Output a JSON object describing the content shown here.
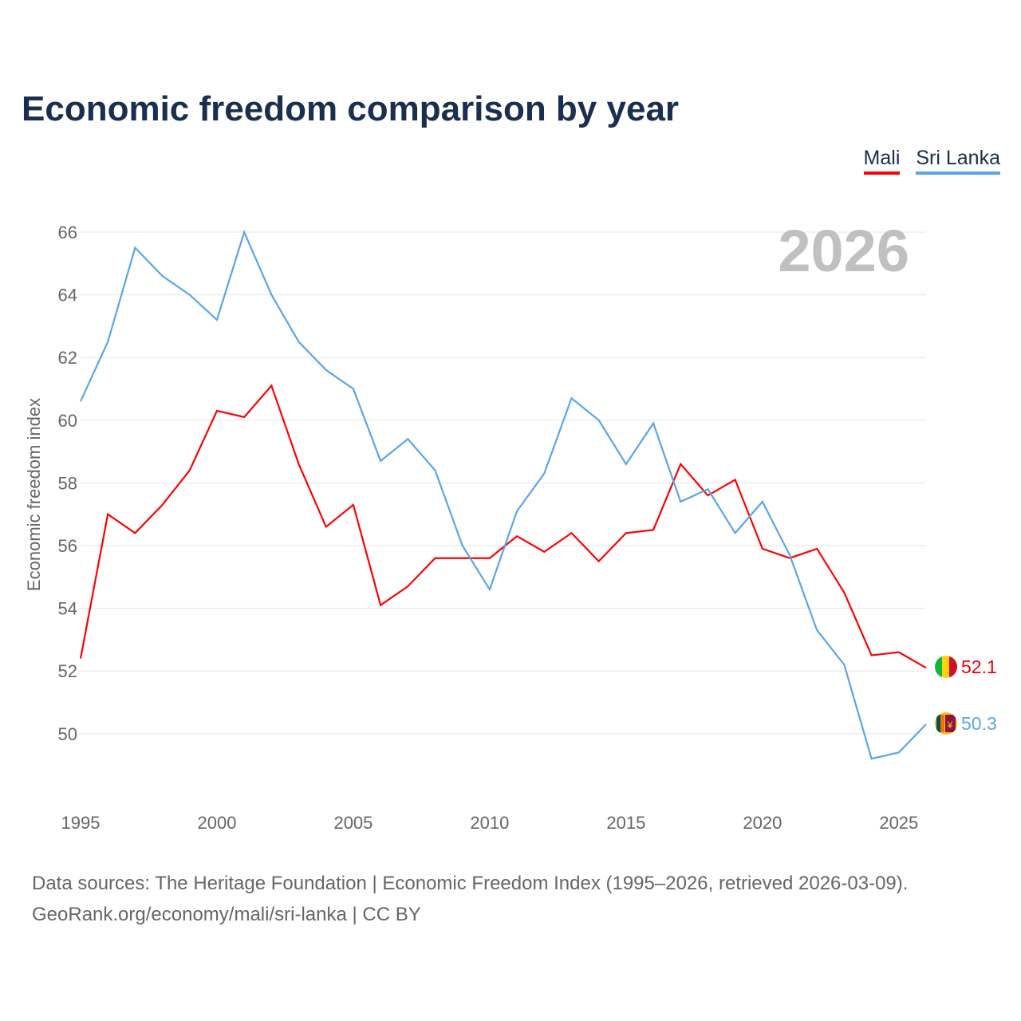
{
  "chart_data": {
    "type": "line",
    "title": "Economic freedom comparison by year",
    "ylabel": "Economic freedom index",
    "xlabel": "",
    "ylim": [
      48,
      66
    ],
    "yticks": [
      50,
      52,
      54,
      56,
      58,
      60,
      62,
      64,
      66
    ],
    "xticks": [
      1995,
      2000,
      2005,
      2010,
      2015,
      2020,
      2025
    ],
    "grid": true,
    "legend_position": "top-right",
    "year_label": "2026",
    "x": [
      1995,
      1996,
      1997,
      1998,
      1999,
      2000,
      2001,
      2002,
      2003,
      2004,
      2005,
      2006,
      2007,
      2008,
      2009,
      2010,
      2011,
      2012,
      2013,
      2014,
      2015,
      2016,
      2017,
      2018,
      2019,
      2020,
      2021,
      2022,
      2023,
      2024,
      2025,
      2026
    ],
    "series": [
      {
        "name": "Mali",
        "color": "#ff0000",
        "end_label": "52.1",
        "values": [
          52.4,
          57.0,
          56.4,
          57.3,
          58.4,
          60.3,
          60.1,
          61.1,
          58.6,
          56.6,
          57.3,
          54.1,
          54.7,
          55.6,
          55.6,
          55.6,
          56.3,
          55.8,
          56.4,
          55.5,
          56.4,
          56.5,
          58.6,
          57.6,
          58.1,
          55.9,
          55.6,
          55.9,
          54.5,
          52.5,
          52.6,
          52.1
        ]
      },
      {
        "name": "Sri Lanka",
        "color": "#5aa5e8",
        "end_label": "50.3",
        "values": [
          60.6,
          62.5,
          65.5,
          64.6,
          64.0,
          63.2,
          66.0,
          64.0,
          62.5,
          61.6,
          61.0,
          58.7,
          59.4,
          58.4,
          56.0,
          54.6,
          57.1,
          58.3,
          60.7,
          60.0,
          58.6,
          59.9,
          57.4,
          57.8,
          56.4,
          57.4,
          55.7,
          53.3,
          52.2,
          49.2,
          49.4,
          50.3
        ]
      }
    ]
  },
  "source_line1": "Data sources: The Heritage Foundation | Economic Freedom Index (1995–2026, retrieved 2026-03-09).",
  "source_line2": "GeoRank.org/economy/mali/sri-lanka | CC BY"
}
